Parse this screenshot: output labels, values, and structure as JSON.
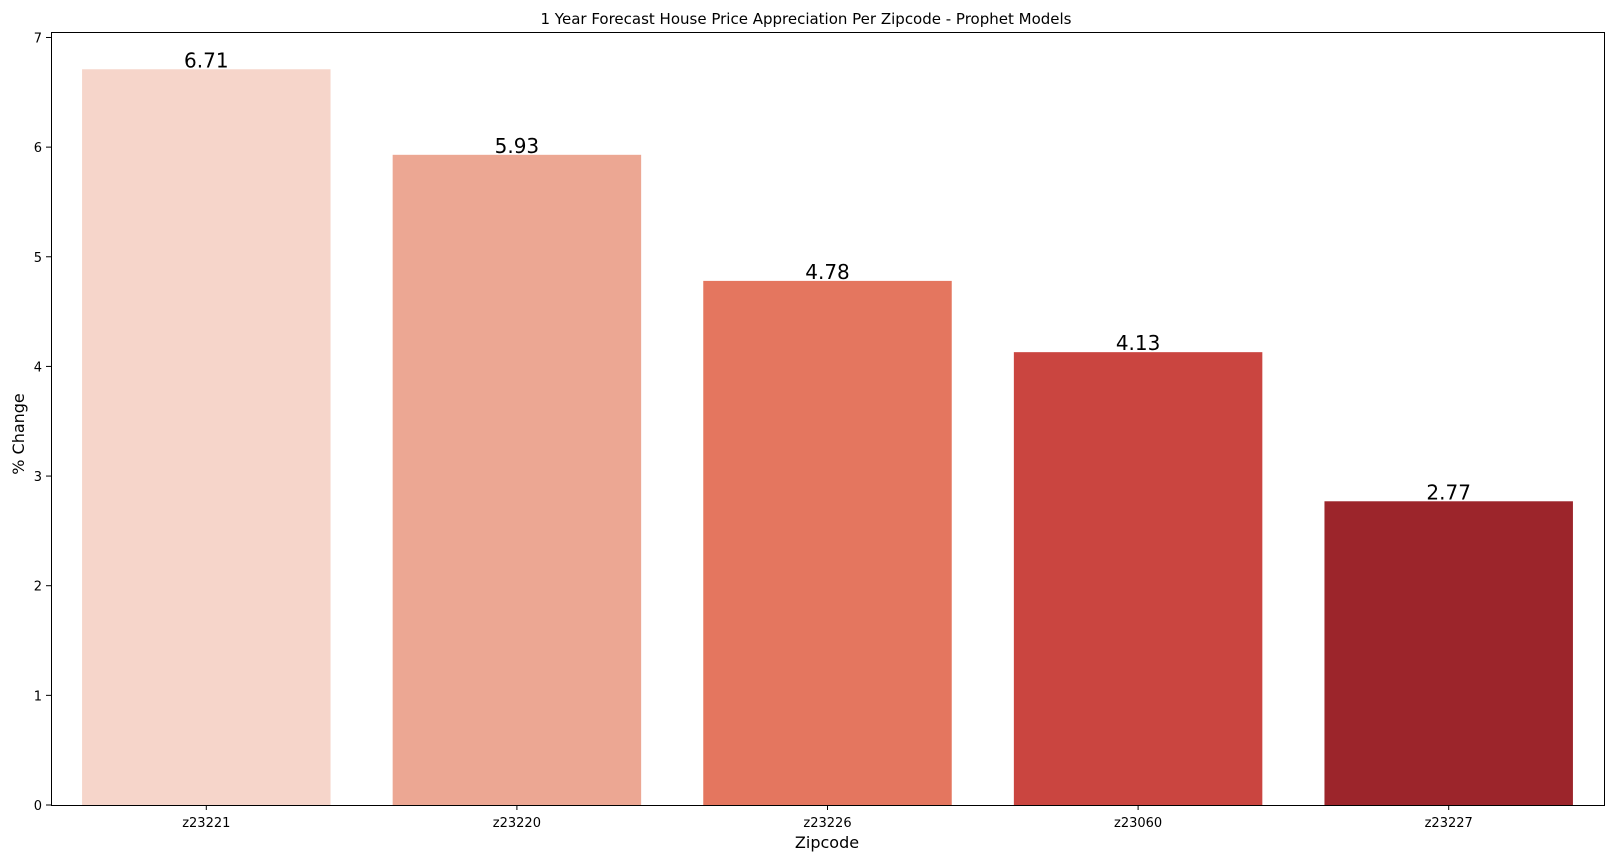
{
  "chart_data": {
    "type": "bar",
    "title": "1 Year Forecast House Price Appreciation Per Zipcode - Prophet Models",
    "xlabel": "Zipcode",
    "ylabel": "% Change",
    "categories": [
      "z23221",
      "z23220",
      "z23226",
      "z23060",
      "z23227"
    ],
    "values": [
      6.71,
      5.93,
      4.78,
      4.13,
      2.77
    ],
    "data_labels": [
      "6.71",
      "5.93",
      "4.78",
      "4.13",
      "2.77"
    ],
    "colors": [
      "#f6d5ca",
      "#eca793",
      "#e4765f",
      "#ca4540",
      "#9c252b"
    ],
    "ylim": [
      0,
      7.05
    ],
    "yticks": [
      0,
      1,
      2,
      3,
      4,
      5,
      6,
      7
    ],
    "grid": false,
    "legend": "none"
  }
}
